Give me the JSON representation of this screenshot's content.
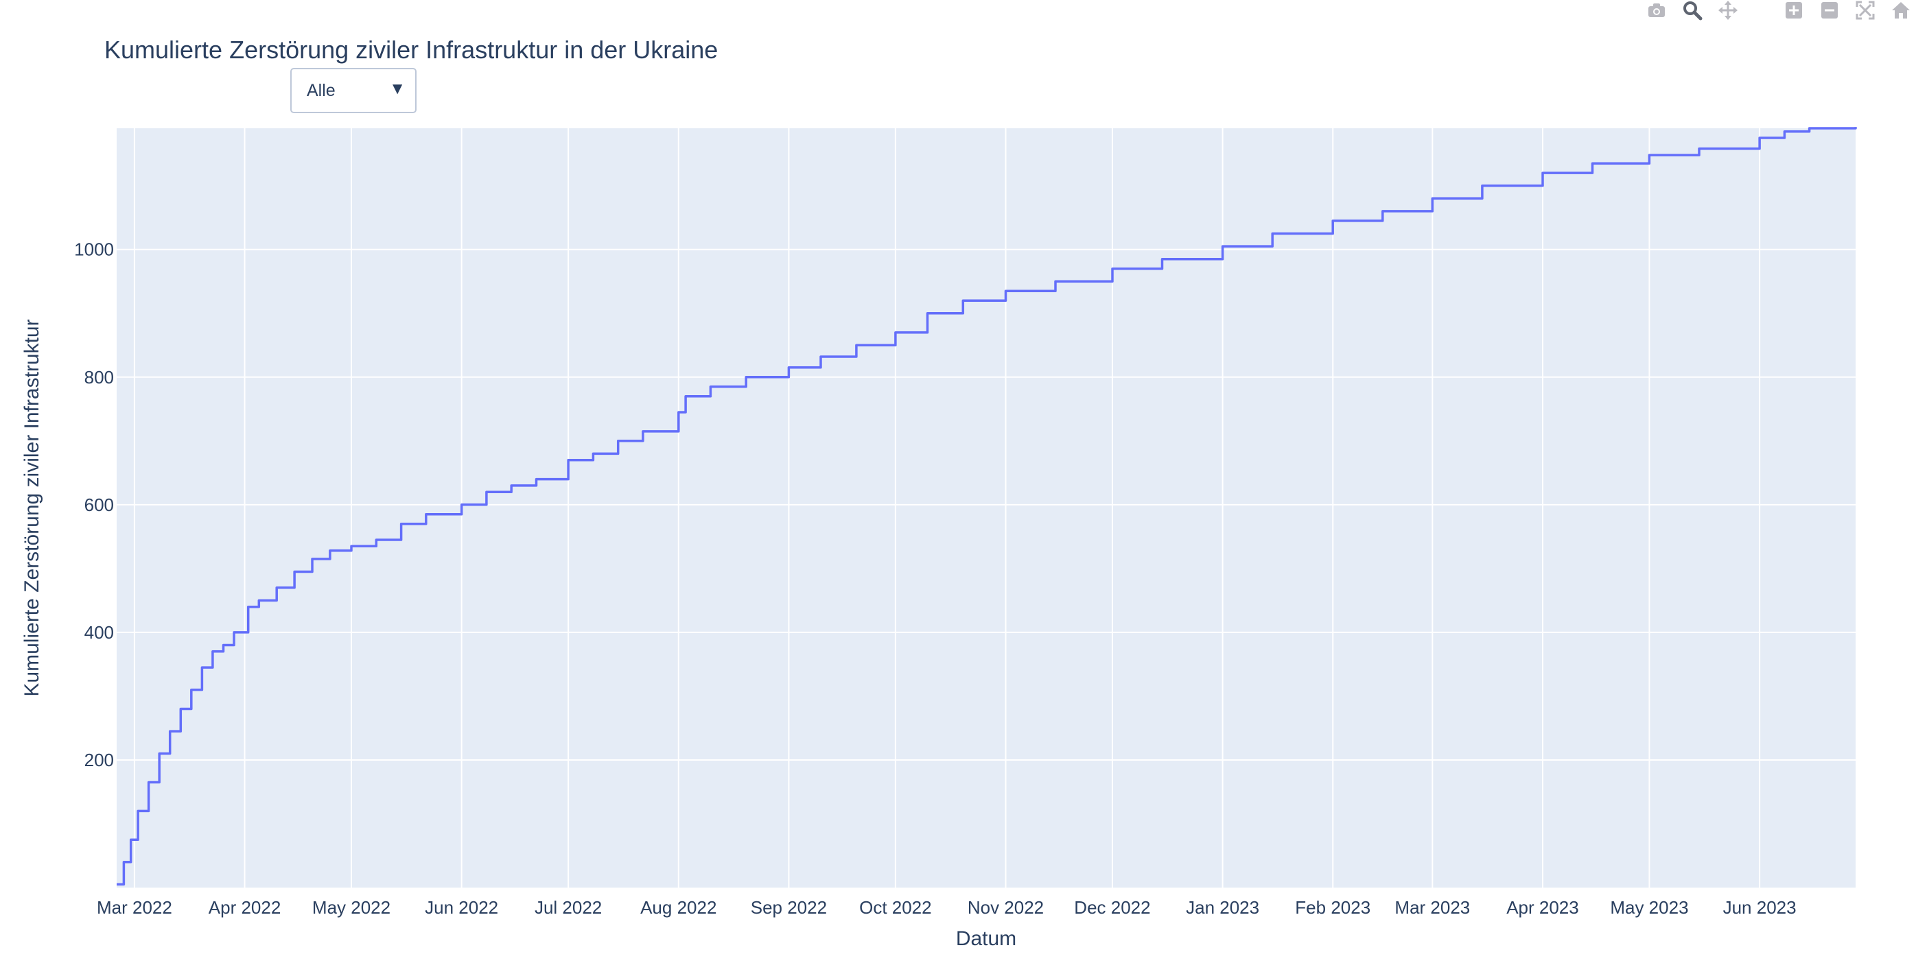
{
  "chart_title": "Kumulierte Zerstörung ziviler Infrastruktur in der Ukraine",
  "dropdown": {
    "selected": "Alle",
    "arrow": "▼"
  },
  "modebar": {
    "icons": [
      "camera-icon",
      "zoom-icon",
      "pan-icon",
      "zoom-in-icon",
      "zoom-out-icon",
      "autoscale-icon",
      "reset-axes-icon"
    ]
  },
  "colors": {
    "plot_bg": "#e5ecf6",
    "grid": "#ffffff",
    "line": "#636efa",
    "text": "#2a3f5f"
  },
  "chart_data": {
    "type": "line",
    "line_shape": "step",
    "xlabel": "Datum",
    "ylabel": "Kumulierte Zerstörung ziviler Infrastruktur",
    "xlim": [
      "2022-02-24",
      "2023-06-28"
    ],
    "ylim": [
      0,
      1190
    ],
    "grid": true,
    "legend": "none",
    "x_ticks": [
      {
        "date": "2022-03-01",
        "label": "Mar 2022"
      },
      {
        "date": "2022-04-01",
        "label": "Apr 2022"
      },
      {
        "date": "2022-05-01",
        "label": "May 2022"
      },
      {
        "date": "2022-06-01",
        "label": "Jun 2022"
      },
      {
        "date": "2022-07-01",
        "label": "Jul 2022"
      },
      {
        "date": "2022-08-01",
        "label": "Aug 2022"
      },
      {
        "date": "2022-09-01",
        "label": "Sep 2022"
      },
      {
        "date": "2022-10-01",
        "label": "Oct 2022"
      },
      {
        "date": "2022-11-01",
        "label": "Nov 2022"
      },
      {
        "date": "2022-12-01",
        "label": "Dec 2022"
      },
      {
        "date": "2023-01-01",
        "label": "Jan 2023"
      },
      {
        "date": "2023-02-01",
        "label": "Feb 2023"
      },
      {
        "date": "2023-03-01",
        "label": "Mar 2023"
      },
      {
        "date": "2023-04-01",
        "label": "Apr 2023"
      },
      {
        "date": "2023-05-01",
        "label": "May 2023"
      },
      {
        "date": "2023-06-01",
        "label": "Jun 2023"
      }
    ],
    "y_ticks": [
      200,
      400,
      600,
      800,
      1000
    ],
    "series": [
      {
        "x": [
          "2022-02-24",
          "2022-02-26",
          "2022-02-28",
          "2022-03-02",
          "2022-03-05",
          "2022-03-08",
          "2022-03-11",
          "2022-03-14",
          "2022-03-17",
          "2022-03-20",
          "2022-03-23",
          "2022-03-26",
          "2022-03-29",
          "2022-04-02",
          "2022-04-05",
          "2022-04-10",
          "2022-04-15",
          "2022-04-20",
          "2022-04-25",
          "2022-05-01",
          "2022-05-08",
          "2022-05-15",
          "2022-05-22",
          "2022-06-01",
          "2022-06-08",
          "2022-06-15",
          "2022-06-22",
          "2022-07-01",
          "2022-07-08",
          "2022-07-15",
          "2022-07-22",
          "2022-08-01",
          "2022-08-03",
          "2022-08-10",
          "2022-08-20",
          "2022-09-01",
          "2022-09-10",
          "2022-09-20",
          "2022-10-01",
          "2022-10-10",
          "2022-10-20",
          "2022-11-01",
          "2022-11-15",
          "2022-12-01",
          "2022-12-15",
          "2023-01-01",
          "2023-01-15",
          "2023-02-01",
          "2023-02-15",
          "2023-03-01",
          "2023-03-15",
          "2023-04-01",
          "2023-04-15",
          "2023-05-01",
          "2023-05-15",
          "2023-06-01",
          "2023-06-08",
          "2023-06-15",
          "2023-06-28"
        ],
        "y": [
          5,
          40,
          75,
          120,
          165,
          210,
          245,
          280,
          310,
          345,
          370,
          380,
          400,
          440,
          450,
          470,
          495,
          515,
          528,
          535,
          545,
          570,
          585,
          600,
          620,
          630,
          640,
          670,
          680,
          700,
          715,
          745,
          770,
          785,
          800,
          815,
          832,
          850,
          870,
          900,
          920,
          935,
          950,
          970,
          985,
          1005,
          1025,
          1045,
          1060,
          1080,
          1100,
          1120,
          1135,
          1148,
          1158,
          1175,
          1185,
          1190,
          1192
        ]
      }
    ]
  }
}
